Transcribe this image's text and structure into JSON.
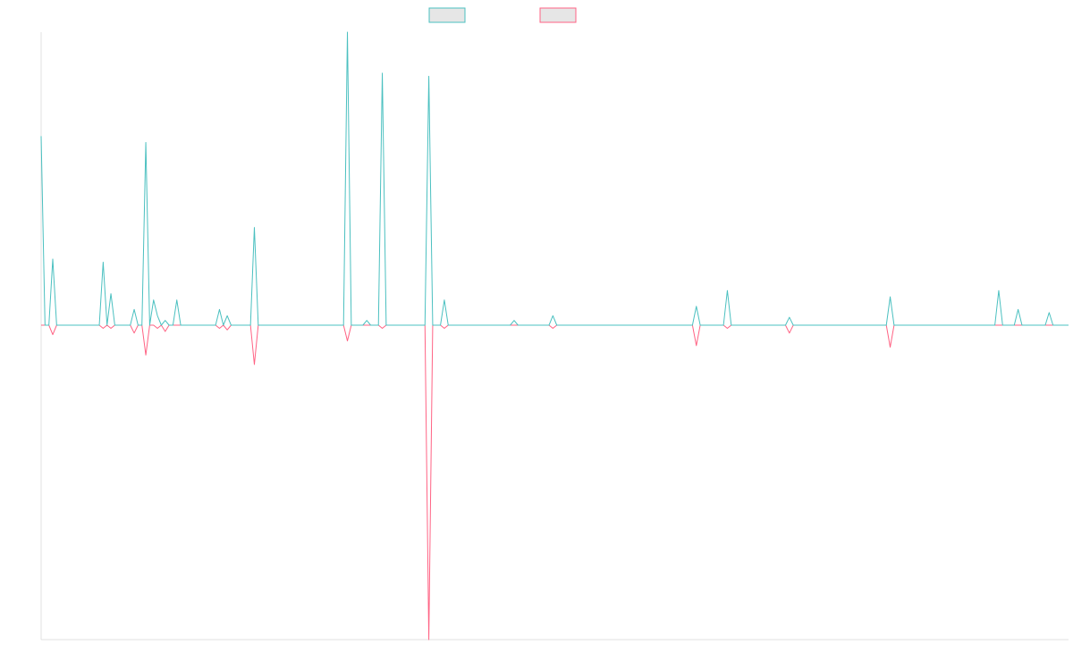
{
  "chart_data": {
    "type": "line",
    "title": "",
    "xlabel": "",
    "ylabel": "",
    "grid": false,
    "legend": {
      "position": "top-center",
      "entries": [
        {
          "name": "",
          "color": "#4bc0c0"
        },
        {
          "name": "",
          "color": "#ff6384"
        }
      ]
    },
    "x_count": 266,
    "ylim": [
      -100,
      93
    ],
    "series": [
      {
        "name": "",
        "color": "#4bc0c0",
        "points": [
          [
            0,
            60
          ],
          [
            1,
            0
          ],
          [
            2,
            0
          ],
          [
            3,
            21
          ],
          [
            4,
            0
          ],
          [
            15,
            0
          ],
          [
            16,
            20
          ],
          [
            17,
            0
          ],
          [
            18,
            10
          ],
          [
            19,
            0
          ],
          [
            23,
            0
          ],
          [
            24,
            5
          ],
          [
            25,
            0
          ],
          [
            26,
            0
          ],
          [
            27,
            58
          ],
          [
            28,
            0
          ],
          [
            29,
            8
          ],
          [
            30,
            3
          ],
          [
            31,
            0
          ],
          [
            32,
            1.5
          ],
          [
            33,
            0
          ],
          [
            34,
            0
          ],
          [
            35,
            8
          ],
          [
            36,
            0
          ],
          [
            45,
            0
          ],
          [
            46,
            5
          ],
          [
            47,
            0
          ],
          [
            48,
            3
          ],
          [
            49,
            0
          ],
          [
            54,
            0
          ],
          [
            55,
            31
          ],
          [
            56,
            0
          ],
          [
            78,
            0
          ],
          [
            79,
            93
          ],
          [
            80,
            0
          ],
          [
            83,
            0
          ],
          [
            84,
            1.5
          ],
          [
            85,
            0
          ],
          [
            87,
            0
          ],
          [
            88,
            80
          ],
          [
            89,
            0
          ],
          [
            99,
            0
          ],
          [
            100,
            79
          ],
          [
            101,
            0
          ],
          [
            103,
            0
          ],
          [
            104,
            8
          ],
          [
            105,
            0
          ],
          [
            121,
            0
          ],
          [
            122,
            1.5
          ],
          [
            123,
            0
          ],
          [
            131,
            0
          ],
          [
            132,
            3
          ],
          [
            133,
            0
          ],
          [
            168,
            0
          ],
          [
            169,
            6
          ],
          [
            170,
            0
          ],
          [
            176,
            0
          ],
          [
            177,
            11
          ],
          [
            178,
            0
          ],
          [
            192,
            0
          ],
          [
            193,
            2.5
          ],
          [
            194,
            0
          ],
          [
            218,
            0
          ],
          [
            219,
            9
          ],
          [
            220,
            0
          ],
          [
            246,
            0
          ],
          [
            247,
            11
          ],
          [
            248,
            0
          ],
          [
            251,
            0
          ],
          [
            252,
            5
          ],
          [
            253,
            0
          ],
          [
            259,
            0
          ],
          [
            260,
            4
          ],
          [
            261,
            0
          ],
          [
            265,
            0
          ]
        ]
      },
      {
        "name": "",
        "color": "#ff6384",
        "points": [
          [
            0,
            0
          ],
          [
            1,
            0
          ],
          [
            2,
            0
          ],
          [
            3,
            -3
          ],
          [
            4,
            0
          ],
          [
            15,
            0
          ],
          [
            16,
            -1
          ],
          [
            17,
            0
          ],
          [
            18,
            -1
          ],
          [
            19,
            0
          ],
          [
            23,
            0
          ],
          [
            24,
            -2.5
          ],
          [
            25,
            0
          ],
          [
            26,
            0
          ],
          [
            27,
            -9.5
          ],
          [
            28,
            0
          ],
          [
            29,
            0
          ],
          [
            30,
            -1
          ],
          [
            31,
            0
          ],
          [
            32,
            -2
          ],
          [
            33,
            0
          ],
          [
            45,
            0
          ],
          [
            46,
            -1
          ],
          [
            47,
            0
          ],
          [
            48,
            -1.5
          ],
          [
            49,
            0
          ],
          [
            54,
            0
          ],
          [
            55,
            -12.5
          ],
          [
            56,
            0
          ],
          [
            78,
            0
          ],
          [
            79,
            -5
          ],
          [
            80,
            0
          ],
          [
            87,
            0
          ],
          [
            88,
            -1
          ],
          [
            89,
            0
          ],
          [
            99,
            0
          ],
          [
            100,
            -100
          ],
          [
            101,
            0
          ],
          [
            103,
            0
          ],
          [
            104,
            -1
          ],
          [
            105,
            0
          ],
          [
            131,
            0
          ],
          [
            132,
            -1
          ],
          [
            133,
            0
          ],
          [
            168,
            0
          ],
          [
            169,
            -6.5
          ],
          [
            170,
            0
          ],
          [
            176,
            0
          ],
          [
            177,
            -1
          ],
          [
            178,
            0
          ],
          [
            192,
            0
          ],
          [
            193,
            -2.5
          ],
          [
            194,
            0
          ],
          [
            218,
            0
          ],
          [
            219,
            -7
          ],
          [
            220,
            0
          ],
          [
            265,
            0
          ]
        ]
      }
    ]
  }
}
